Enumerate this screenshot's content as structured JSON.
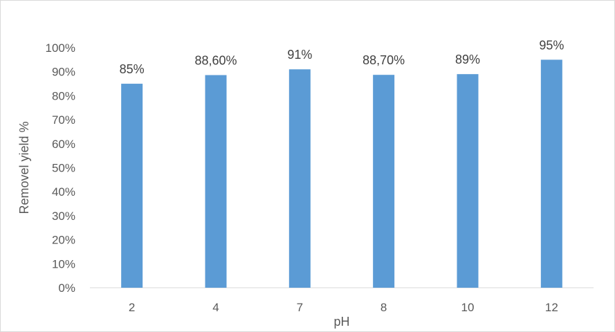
{
  "chart_data": {
    "type": "bar",
    "title": "",
    "xlabel": "pH",
    "ylabel": "Removel yield %",
    "categories": [
      "2",
      "4",
      "7",
      "8",
      "10",
      "12"
    ],
    "values": [
      85,
      88.6,
      91,
      88.7,
      89,
      95
    ],
    "data_labels": [
      "85%",
      "88,60%",
      "91%",
      "88,70%",
      "89%",
      "95%"
    ],
    "y_ticks": [
      0,
      10,
      20,
      30,
      40,
      50,
      60,
      70,
      80,
      90,
      100
    ],
    "y_tick_labels": [
      "0%",
      "10%",
      "20%",
      "30%",
      "40%",
      "50%",
      "60%",
      "70%",
      "80%",
      "90%",
      "100%"
    ],
    "ylim": [
      0,
      100
    ],
    "grid": false,
    "legend": "none",
    "bar_color": "#5B9BD5",
    "axis_color": "#d9d9d9"
  }
}
